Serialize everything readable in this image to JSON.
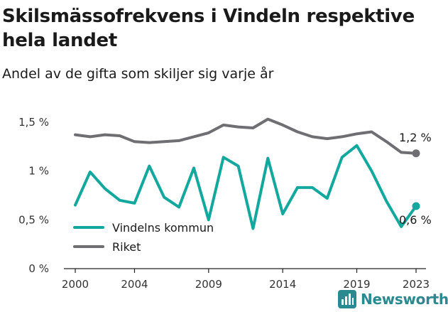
{
  "title": "Skilsmässofrekvens i Vindeln respektive hela landet",
  "subtitle": "Andel av de gifta som skiljer sig varje år",
  "brand": {
    "name": "Newsworthy",
    "icon": "bar-chart-icon",
    "color": "#2a8a8f"
  },
  "chart_data": {
    "type": "line",
    "title": "Skilsmässofrekvens i Vindeln respektive hela landet",
    "subtitle": "Andel av de gifta som skiljer sig varje år",
    "x": [
      2000,
      2001,
      2002,
      2003,
      2004,
      2005,
      2006,
      2007,
      2008,
      2009,
      2010,
      2011,
      2012,
      2013,
      2014,
      2015,
      2016,
      2017,
      2018,
      2019,
      2020,
      2021,
      2022,
      2023
    ],
    "x_ticks": [
      "2000",
      "2004",
      "2009",
      "2014",
      "2019",
      "2023"
    ],
    "y_ticks": [
      "0 %",
      "0,5 %",
      "1 %",
      "1,5 %"
    ],
    "ylim": [
      0,
      1.55
    ],
    "grid": false,
    "legend_position": "bottom-left",
    "series": [
      {
        "name": "Vindelns kommun",
        "color": "#13a89e",
        "values": [
          0.65,
          0.99,
          0.82,
          0.7,
          0.67,
          1.05,
          0.73,
          0.63,
          1.03,
          0.5,
          1.14,
          1.05,
          0.41,
          1.13,
          0.56,
          0.83,
          0.83,
          0.72,
          1.14,
          1.26,
          1.0,
          0.69,
          0.43,
          0.64
        ],
        "end_label": "0,6 %"
      },
      {
        "name": "Riket",
        "color": "#6e6e73",
        "values": [
          1.37,
          1.35,
          1.37,
          1.36,
          1.3,
          1.29,
          1.3,
          1.31,
          1.35,
          1.39,
          1.47,
          1.45,
          1.44,
          1.53,
          1.47,
          1.4,
          1.35,
          1.33,
          1.35,
          1.38,
          1.4,
          1.3,
          1.19,
          1.18
        ],
        "end_label": "1,2 %"
      }
    ]
  }
}
